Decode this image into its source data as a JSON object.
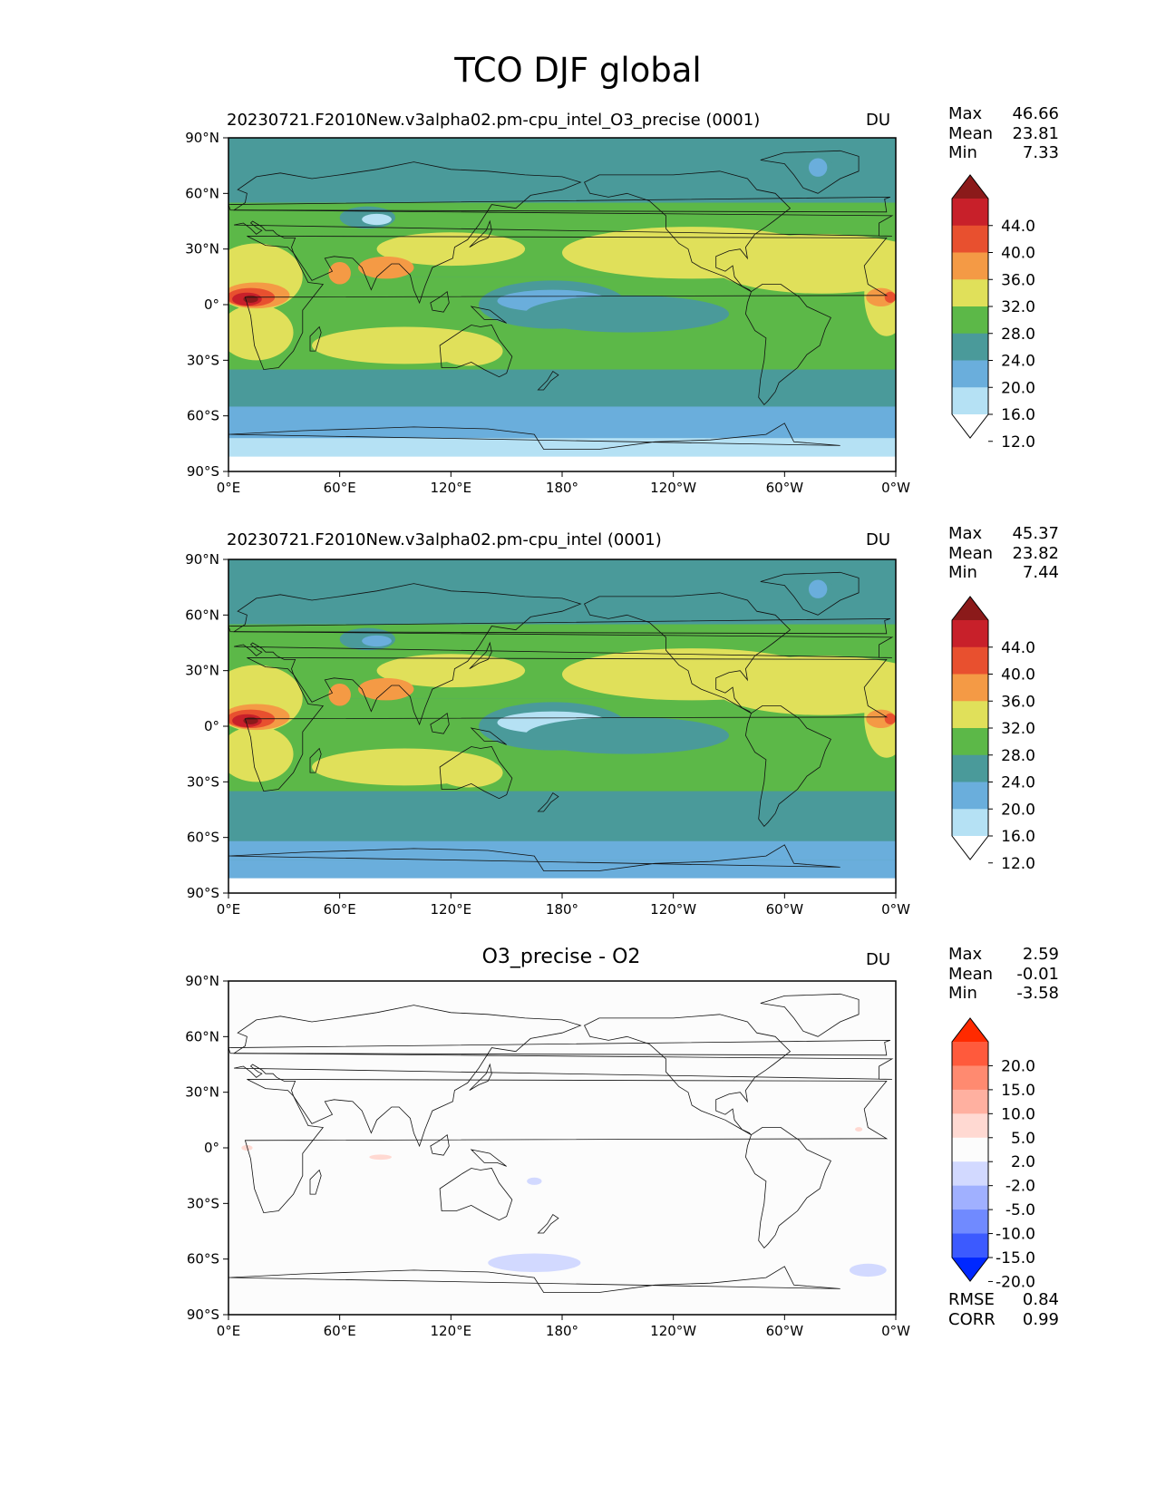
{
  "suptitle": "TCO DJF global",
  "chart_data": [
    {
      "type": "heatmap",
      "map_projection": "PlateCarree, central longitude 180",
      "title": "20230721.F2010New.v3alpha02.pm-cpu_intel_O3_precise (0001)",
      "units": "DU",
      "stats": {
        "max_label": "Max",
        "max": "46.66",
        "mean_label": "Mean",
        "mean": "23.81",
        "min_label": "Min",
        "min": "7.33"
      },
      "xticks": [
        "0°E",
        "60°E",
        "120°E",
        "180°",
        "120°W",
        "60°W",
        "0°W"
      ],
      "yticks": [
        "90°N",
        "60°N",
        "30°N",
        "0°",
        "30°S",
        "60°S",
        "90°S"
      ],
      "xlim": [
        0,
        360
      ],
      "ylim": [
        -90,
        90
      ],
      "colorbar": {
        "levels": [
          "44.0",
          "40.0",
          "36.0",
          "32.0",
          "28.0",
          "24.0",
          "20.0",
          "16.0",
          "12.0"
        ],
        "colors": [
          "#8b1a1a",
          "#c8202a",
          "#e8502f",
          "#f49a45",
          "#e0e05a",
          "#5cb848",
          "#4a9a9a",
          "#6aaedc",
          "#b5e1f4",
          "#ffffff"
        ],
        "extend": "both"
      },
      "variant": "a"
    },
    {
      "type": "heatmap",
      "map_projection": "PlateCarree, central longitude 180",
      "title": "20230721.F2010New.v3alpha02.pm-cpu_intel (0001)",
      "units": "DU",
      "stats": {
        "max_label": "Max",
        "max": "45.37",
        "mean_label": "Mean",
        "mean": "23.82",
        "min_label": "Min",
        "min": "7.44"
      },
      "xticks": [
        "0°E",
        "60°E",
        "120°E",
        "180°",
        "120°W",
        "60°W",
        "0°W"
      ],
      "yticks": [
        "90°N",
        "60°N",
        "30°N",
        "0°",
        "30°S",
        "60°S",
        "90°S"
      ],
      "xlim": [
        0,
        360
      ],
      "ylim": [
        -90,
        90
      ],
      "colorbar": {
        "levels": [
          "44.0",
          "40.0",
          "36.0",
          "32.0",
          "28.0",
          "24.0",
          "20.0",
          "16.0",
          "12.0"
        ],
        "colors": [
          "#8b1a1a",
          "#c8202a",
          "#e8502f",
          "#f49a45",
          "#e0e05a",
          "#5cb848",
          "#4a9a9a",
          "#6aaedc",
          "#b5e1f4",
          "#ffffff"
        ],
        "extend": "both"
      },
      "variant": "b"
    },
    {
      "type": "heatmap",
      "map_projection": "PlateCarree, central longitude 180",
      "title": "O3_precise - O2",
      "units": "DU",
      "stats": {
        "max_label": "Max",
        "max": "2.59",
        "mean_label": "Mean",
        "mean": "-0.01",
        "min_label": "Min",
        "min": "-3.58"
      },
      "xticks": [
        "0°E",
        "60°E",
        "120°E",
        "180°",
        "120°W",
        "60°W",
        "0°W"
      ],
      "yticks": [
        "90°N",
        "60°N",
        "30°N",
        "0°",
        "30°S",
        "60°S",
        "90°S"
      ],
      "xlim": [
        0,
        360
      ],
      "ylim": [
        -90,
        90
      ],
      "colorbar": {
        "levels": [
          "20.0",
          "15.0",
          "10.0",
          "5.0",
          "2.0",
          "-2.0",
          "-5.0",
          "-10.0",
          "-15.0",
          "-20.0"
        ],
        "colors": [
          "#ff2a00",
          "#ff5a3c",
          "#ff8a70",
          "#ffb0a0",
          "#ffd9d2",
          "#fcfcfc",
          "#d2d9ff",
          "#a0b0ff",
          "#708aff",
          "#3c5aff",
          "#0028ff"
        ],
        "extend": "both"
      },
      "extra_stats": {
        "rmse_label": "RMSE",
        "rmse": "0.84",
        "corr_label": "CORR",
        "corr": "0.99"
      },
      "variant": "diff"
    }
  ]
}
